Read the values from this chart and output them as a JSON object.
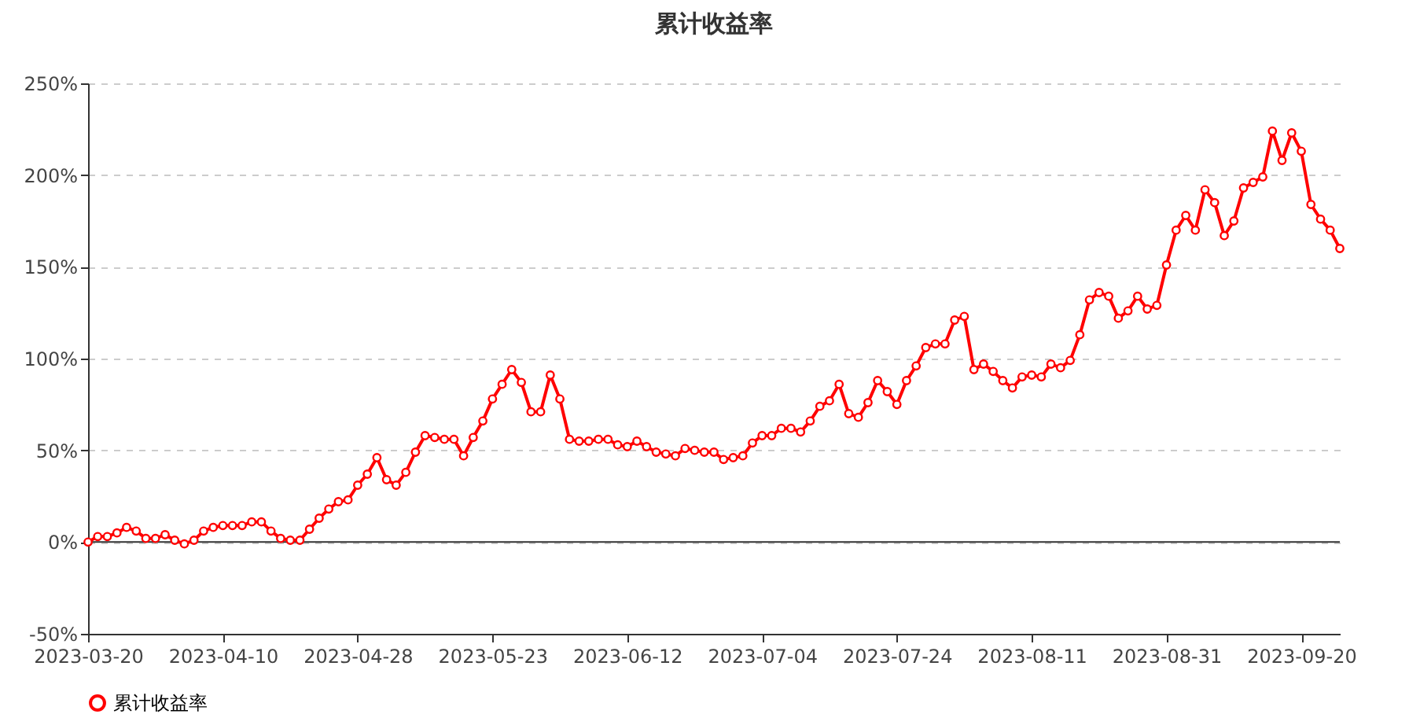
{
  "chart_data": {
    "type": "line",
    "title": "累计收益率",
    "categories": [
      "2023-03-20",
      null,
      null,
      null,
      null,
      null,
      null,
      null,
      null,
      null,
      null,
      null,
      null,
      null,
      "2023-04-10",
      null,
      null,
      null,
      null,
      null,
      null,
      null,
      null,
      null,
      null,
      null,
      null,
      null,
      "2023-04-28",
      null,
      null,
      null,
      null,
      null,
      null,
      null,
      null,
      null,
      null,
      null,
      null,
      null,
      "2023-05-23",
      null,
      null,
      null,
      null,
      null,
      null,
      null,
      null,
      null,
      null,
      null,
      null,
      null,
      "2023-06-12",
      null,
      null,
      null,
      null,
      null,
      null,
      null,
      null,
      null,
      null,
      null,
      null,
      null,
      "2023-07-04",
      null,
      null,
      null,
      null,
      null,
      null,
      null,
      null,
      null,
      null,
      null,
      null,
      null,
      "2023-07-24",
      null,
      null,
      null,
      null,
      null,
      null,
      null,
      null,
      null,
      null,
      null,
      null,
      null,
      "2023-08-11",
      null,
      null,
      null,
      null,
      null,
      null,
      null,
      null,
      null,
      null,
      null,
      null,
      null,
      "2023-08-31",
      null,
      null,
      null,
      null,
      null,
      null,
      null,
      null,
      null,
      null,
      null,
      null,
      null,
      "2023-09-20",
      null,
      null,
      null,
      null
    ],
    "series": [
      {
        "name": "累计收益率",
        "color": "#ff0000",
        "values": [
          0,
          3,
          3,
          5,
          8,
          6,
          2,
          2,
          4,
          1,
          -1,
          1,
          6,
          8,
          9,
          9,
          9,
          11,
          11,
          6,
          2,
          1,
          1,
          7,
          13,
          18,
          22,
          23,
          31,
          37,
          46,
          34,
          31,
          38,
          49,
          58,
          57,
          56,
          56,
          47,
          57,
          66,
          78,
          86,
          94,
          87,
          71,
          71,
          91,
          78,
          56,
          55,
          55,
          56,
          56,
          53,
          52,
          55,
          52,
          49,
          48,
          47,
          51,
          50,
          49,
          49,
          45,
          46,
          47,
          54,
          58,
          58,
          62,
          62,
          60,
          66,
          74,
          77,
          86,
          70,
          68,
          76,
          88,
          82,
          75,
          88,
          96,
          106,
          108,
          108,
          121,
          123,
          94,
          97,
          93,
          88,
          84,
          90,
          91,
          90,
          97,
          95,
          99,
          113,
          132,
          136,
          134,
          122,
          126,
          134,
          127,
          129,
          151,
          170,
          178,
          170,
          192,
          185,
          167,
          175,
          193,
          196,
          199,
          224,
          208,
          223,
          213,
          184,
          176,
          170,
          160
        ]
      }
    ],
    "ylim": [
      -50,
      250
    ],
    "yticks": [
      {
        "value": -50,
        "label": "-50%"
      },
      {
        "value": 0,
        "label": "0%"
      },
      {
        "value": 50,
        "label": "50%"
      },
      {
        "value": 100,
        "label": "100%"
      },
      {
        "value": 150,
        "label": "150%"
      },
      {
        "value": 200,
        "label": "200%"
      },
      {
        "value": 250,
        "label": "250%"
      }
    ],
    "grid": "y",
    "legend": "bottom",
    "marker": "circle",
    "line_style": "solid"
  }
}
